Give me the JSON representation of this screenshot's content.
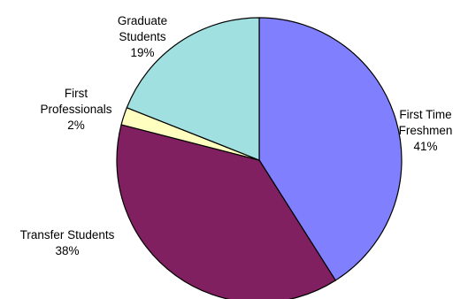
{
  "chart_data": {
    "type": "pie",
    "title": "",
    "start_angle_deg": 0,
    "direction": "clockwise",
    "slices": [
      {
        "lines": [
          "First Time",
          "Freshmen"
        ],
        "value": 41,
        "value_label": "41%",
        "color": "#8080ff"
      },
      {
        "lines": [
          "Transfer Students"
        ],
        "value": 38,
        "value_label": "38%",
        "color": "#802060"
      },
      {
        "lines": [
          "First",
          "Professionals"
        ],
        "value": 2,
        "value_label": "2%",
        "color": "#ffffc0"
      },
      {
        "lines": [
          "Graduate",
          "Students"
        ],
        "value": 19,
        "value_label": "19%",
        "color": "#a0e0e0"
      }
    ]
  }
}
